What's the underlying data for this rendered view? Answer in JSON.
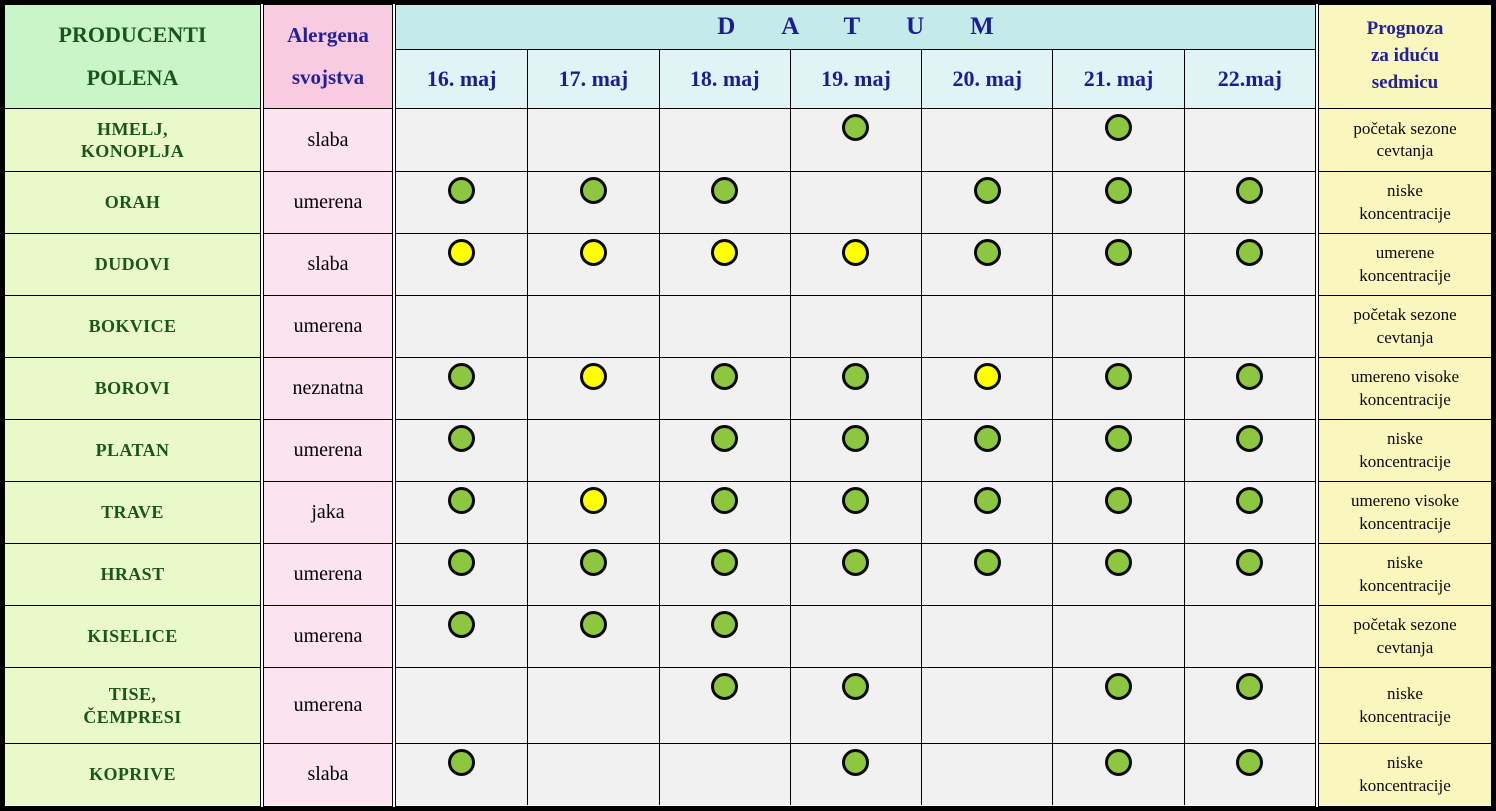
{
  "chart_data": {
    "type": "table",
    "header": {
      "producers_lines": [
        "PRODUCENTI",
        "POLENA"
      ],
      "allergen_lines": [
        "Alergena",
        "svojstva"
      ],
      "datum_label": "DATUM",
      "date_columns": [
        "16. maj",
        "17. maj",
        "18. maj",
        "19. maj",
        "20. maj",
        "21. maj",
        "22.maj"
      ],
      "forecast_lines": [
        "Prognoza",
        "za iduću",
        "sedmicu"
      ]
    },
    "rows": [
      {
        "name_lines": [
          "HMELJ,",
          "KONOPLJA"
        ],
        "allergen": "slaba",
        "days": [
          "",
          "",
          "",
          "green",
          "",
          "green",
          ""
        ],
        "forecast_lines": [
          "početak sezone",
          "cevtanja"
        ]
      },
      {
        "name_lines": [
          "ORAH"
        ],
        "allergen": "umerena",
        "days": [
          "green",
          "green",
          "green",
          "",
          "green",
          "green",
          "green"
        ],
        "forecast_lines": [
          "niske",
          "koncentracije"
        ]
      },
      {
        "name_lines": [
          "DUDOVI"
        ],
        "allergen": "slaba",
        "days": [
          "yellow",
          "yellow",
          "yellow",
          "yellow",
          "green",
          "green",
          "green"
        ],
        "forecast_lines": [
          "umerene",
          "koncentracije"
        ]
      },
      {
        "name_lines": [
          "BOKVICE"
        ],
        "allergen": "umerena",
        "days": [
          "",
          "",
          "",
          "",
          "",
          "",
          ""
        ],
        "forecast_lines": [
          "početak sezone",
          "cevtanja"
        ]
      },
      {
        "name_lines": [
          "BOROVI"
        ],
        "allergen": "neznatna",
        "days": [
          "green",
          "yellow",
          "green",
          "green",
          "yellow",
          "green",
          "green"
        ],
        "forecast_lines": [
          "umereno visoke",
          "koncentracije"
        ]
      },
      {
        "name_lines": [
          "PLATAN"
        ],
        "allergen": "umerena",
        "days": [
          "green",
          "",
          "green",
          "green",
          "green",
          "green",
          "green"
        ],
        "forecast_lines": [
          "niske",
          "koncentracije"
        ]
      },
      {
        "name_lines": [
          "TRAVE"
        ],
        "allergen": "jaka",
        "days": [
          "green",
          "yellow",
          "green",
          "green",
          "green",
          "green",
          "green"
        ],
        "forecast_lines": [
          "umereno visoke",
          "koncentracije"
        ]
      },
      {
        "name_lines": [
          "HRAST"
        ],
        "allergen": "umerena",
        "days": [
          "green",
          "green",
          "green",
          "green",
          "green",
          "green",
          "green"
        ],
        "forecast_lines": [
          "niske",
          "koncentracije"
        ]
      },
      {
        "name_lines": [
          "KISELICE"
        ],
        "allergen": "umerena",
        "days": [
          "green",
          "green",
          "green",
          "",
          "",
          "",
          ""
        ],
        "forecast_lines": [
          "početak sezone",
          "cevtanja"
        ]
      },
      {
        "name_lines": [
          "TISE,",
          "ČEMPRESI"
        ],
        "tall": true,
        "allergen": "umerena",
        "days": [
          "",
          "",
          "green",
          "green",
          "",
          "green",
          "green"
        ],
        "forecast_lines": [
          "niske",
          "koncentracije"
        ]
      },
      {
        "name_lines": [
          "KOPRIVE"
        ],
        "allergen": "slaba",
        "days": [
          "green",
          "",
          "",
          "green",
          "",
          "green",
          "green"
        ],
        "forecast_lines": [
          "niske",
          "koncentracije"
        ]
      }
    ],
    "colors": {
      "green_dot": "#8DC63F",
      "yellow_dot": "#FFFF00",
      "producers_header_bg": "#C9F5C9",
      "producers_cell_bg": "#EAF9C9",
      "allergen_header_bg": "#F9CBE1",
      "allergen_cell_bg": "#FBE3EF",
      "datum_band_bg": "#C4EBEA",
      "date_header_bg": "#E0F4F6",
      "date_cell_bg": "#F1F1F1",
      "forecast_bg": "#F9F6BE",
      "producer_text": "#1A551A",
      "header_blue_text": "#1C1C96"
    }
  }
}
